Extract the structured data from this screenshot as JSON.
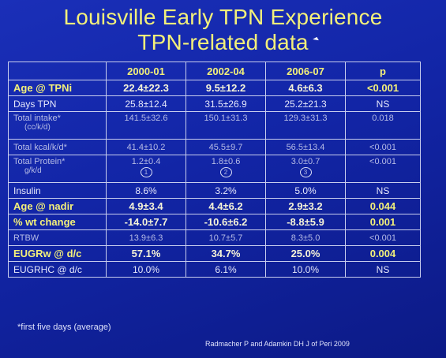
{
  "title_line1": "Louisville Early TPN Experience",
  "title_line2": "TPN-related data",
  "columns": [
    "",
    "2000-01",
    "2002-04",
    "2006-07",
    "p"
  ],
  "rows": [
    {
      "label": "Age @ TPNi",
      "sub": "",
      "v1": "22.4±22.3",
      "v2": "9.5±12.2",
      "v3": "4.6±6.3",
      "p": "<0.001"
    },
    {
      "label": "Days TPN",
      "sub": "",
      "v1": "25.8±12.4",
      "v2": "31.5±26.9",
      "v3": "25.2±21.3",
      "p": "NS"
    },
    {
      "label": "Total intake*",
      "sub": "(cc/k/d)",
      "v1": "141.5±32.6",
      "v2": "150.1±31.3",
      "v3": "129.3±31.3",
      "p": "0.018"
    },
    {
      "label": "Total kcal/k/d*",
      "sub": "",
      "v1": "41.4±10.2",
      "v2": "45.5±9.7",
      "v3": "56.5±13.4",
      "p": "<0.001"
    },
    {
      "label": "Total Protein*",
      "sub": "g/k/d",
      "v1": "1.2±0.4",
      "v2": "1.8±0.6",
      "v3": "3.0±0.7",
      "p": "<0.001",
      "m1": "1",
      "m2": "2",
      "m3": "3"
    },
    {
      "label": "Insulin",
      "sub": "",
      "v1": "8.6%",
      "v2": "3.2%",
      "v3": "5.0%",
      "p": "NS"
    },
    {
      "label": "Age @ nadir",
      "sub": "",
      "v1": "4.9±3.4",
      "v2": "4.4±6.2",
      "v3": "2.9±3.2",
      "p": "0.044"
    },
    {
      "label": "% wt change",
      "sub": "",
      "v1": "-14.0±7.7",
      "v2": "-10.6±6.2",
      "v3": "-8.8±5.9",
      "p": "0.001"
    },
    {
      "label": "RTBW",
      "sub": "",
      "v1": "13.9±6.3",
      "v2": "10.7±5.7",
      "v3": "8.3±5.0",
      "p": "<0.001"
    },
    {
      "label": "EUGRw @ d/c",
      "sub": "",
      "v1": "57.1%",
      "v2": "34.7%",
      "v3": "25.0%",
      "p": "0.004"
    },
    {
      "label": "EUGRHC @ d/c",
      "sub": "",
      "v1": "10.0%",
      "v2": "6.1%",
      "v3": "10.0%",
      "p": "NS"
    }
  ],
  "footnote": "*first five days (average)",
  "citation": "Radmacher P and Adamkin DH J of Peri 2009"
}
